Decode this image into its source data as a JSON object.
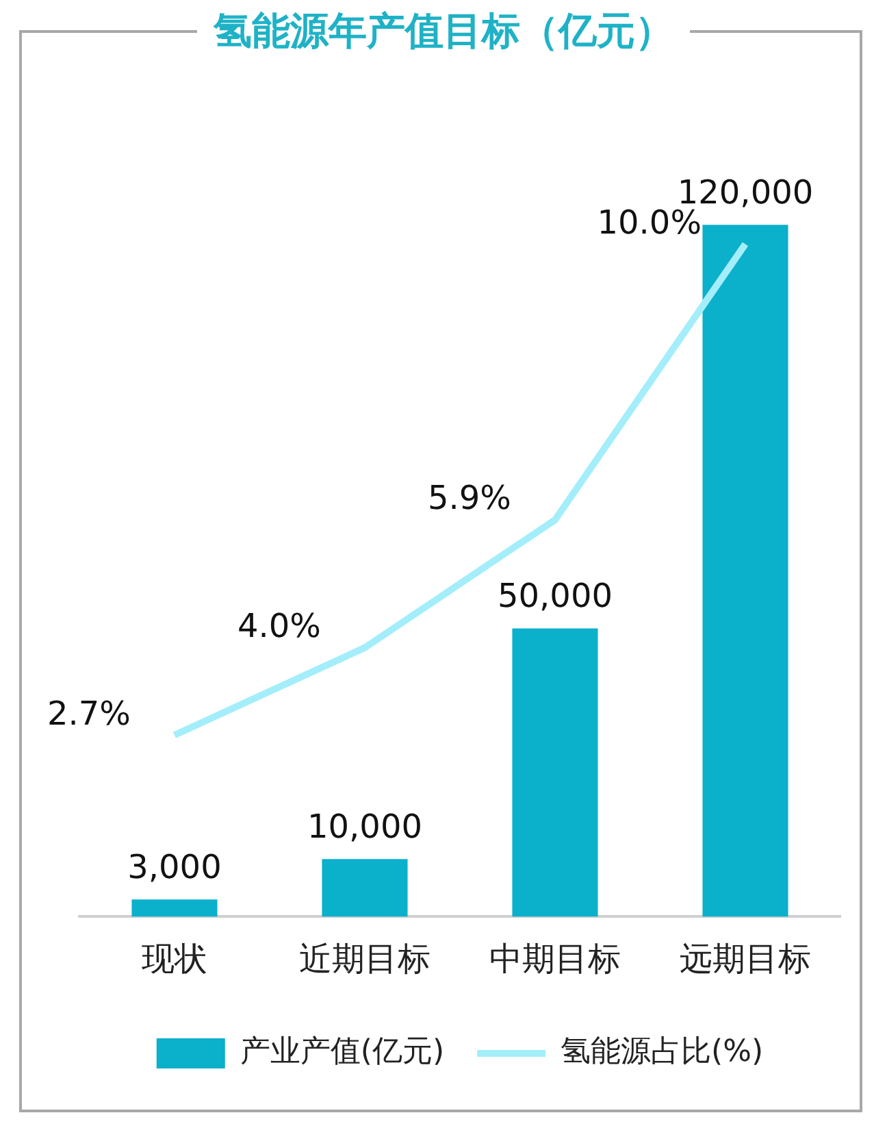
{
  "chart_data": {
    "type": "bar",
    "title": "氢能源年产值目标（亿元）",
    "categories": [
      "现状",
      "近期目标",
      "中期目标",
      "远期目标"
    ],
    "series": [
      {
        "name": "产业产值(亿元)",
        "color": "#0bb0cb",
        "values": [
          3000,
          10000,
          50000,
          120000
        ],
        "value_labels": [
          "3,000",
          "10,000",
          "50,000",
          "120,000"
        ]
      },
      {
        "name": "氢能源占比(%)",
        "type": "line",
        "axis": "y2",
        "color": "#a3eefa",
        "values": [
          2.7,
          4.0,
          5.9,
          10.0
        ],
        "value_labels": [
          "2.7%",
          "4.0%",
          "5.9%",
          "10.0%"
        ]
      }
    ],
    "data_labels": true,
    "grid": false,
    "legend": "bottom",
    "marker": "none",
    "tick_labels": "x"
  }
}
